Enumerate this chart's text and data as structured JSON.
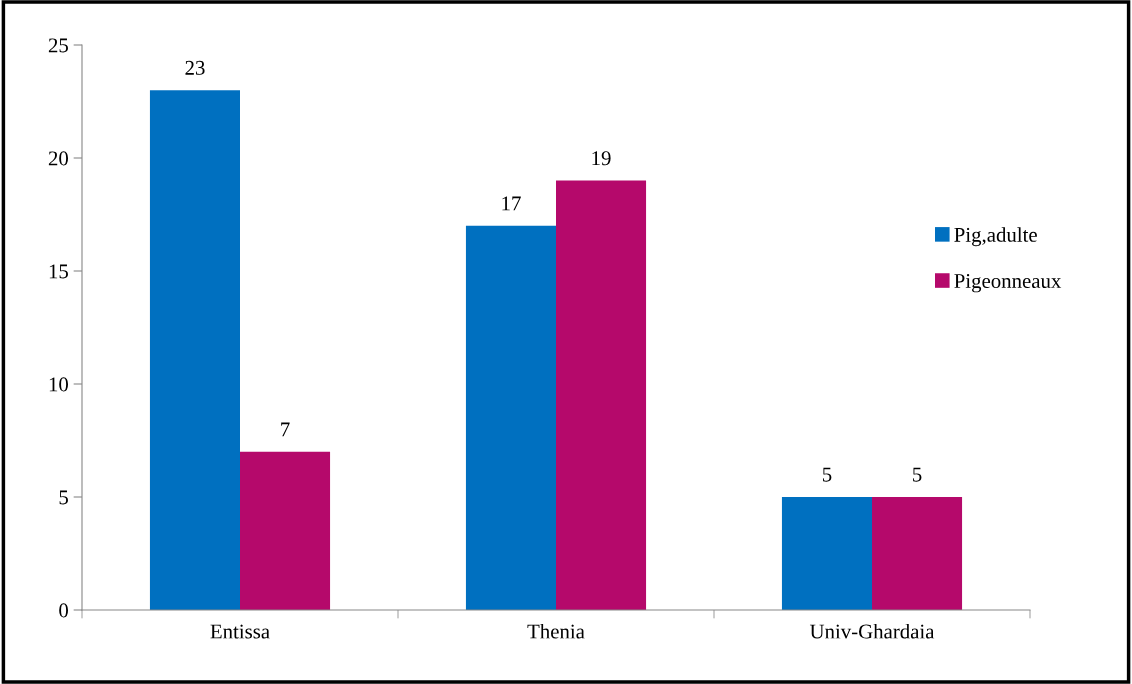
{
  "chart_data": {
    "type": "bar",
    "categories": [
      "Entissa",
      "Thenia",
      "Univ-Ghardaia"
    ],
    "series": [
      {
        "name": "Pig,adulte",
        "color": "#0070c0",
        "values": [
          23,
          17,
          5
        ]
      },
      {
        "name": "Pigeonneaux",
        "color": "#b5096b",
        "values": [
          7,
          19,
          5
        ]
      }
    ],
    "ylim": [
      0,
      25
    ],
    "yticks": [
      0,
      5,
      10,
      15,
      20,
      25
    ],
    "grid": false,
    "legend": "right",
    "data_labels": true
  }
}
